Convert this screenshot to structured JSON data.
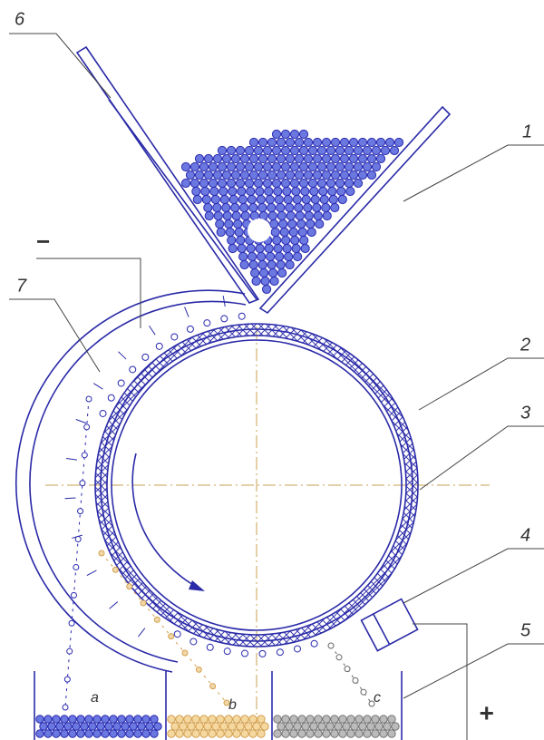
{
  "callouts": [
    {
      "label": "6"
    },
    {
      "label": "1"
    },
    {
      "label": "7"
    },
    {
      "label": "2"
    },
    {
      "label": "3"
    },
    {
      "label": "4"
    },
    {
      "label": "5"
    }
  ],
  "polarity": {
    "negative": "−",
    "positive": "+"
  },
  "bins": [
    {
      "label": "a"
    },
    {
      "label": "b"
    },
    {
      "label": "c"
    }
  ]
}
